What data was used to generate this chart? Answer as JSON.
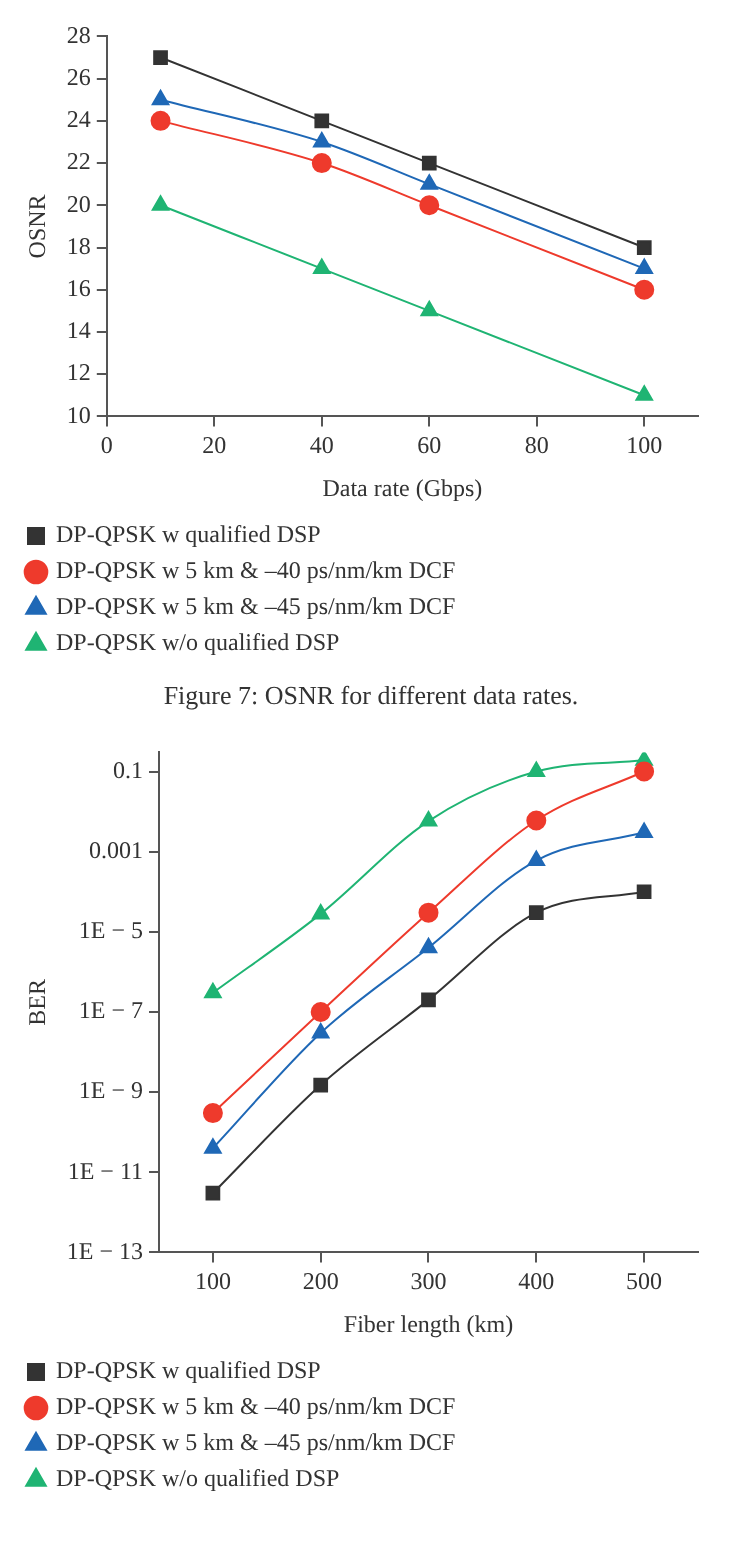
{
  "chart_data": [
    {
      "type": "line",
      "xlabel": "Data rate (Gbps)",
      "ylabel": "OSNR",
      "annotations": [
        "Figure 7: OSNR for different data rates."
      ],
      "x": [
        10,
        40,
        60,
        100
      ],
      "xlim": [
        0,
        110
      ],
      "xticks": [
        0,
        20,
        40,
        60,
        80,
        100
      ],
      "ylim": [
        10,
        28
      ],
      "yticks": [
        10,
        12,
        14,
        16,
        18,
        20,
        22,
        24,
        26,
        28
      ],
      "grid": false,
      "legend": "bottom",
      "series": [
        {
          "name": "DP-QPSK w qualified DSP",
          "color": "#333333",
          "marker": "square",
          "values": [
            27,
            24,
            22,
            18
          ]
        },
        {
          "name": "DP-QPSK w 5 km & –40 ps/nm/km DCF",
          "color": "#ee3a2c",
          "marker": "circle",
          "values": [
            24,
            22,
            20,
            16
          ]
        },
        {
          "name": "DP-QPSK w 5 km & –45 ps/nm/km DCF",
          "color": "#1f68b6",
          "marker": "triangle",
          "values": [
            25,
            23,
            21,
            17
          ]
        },
        {
          "name": "DP-QPSK w/o qualified DSP",
          "color": "#1fb473",
          "marker": "triangle",
          "values": [
            20,
            17,
            15,
            11
          ]
        }
      ]
    },
    {
      "type": "line",
      "xlabel": "Fiber length (km)",
      "ylabel": "BER",
      "log": "y",
      "x": [
        100,
        200,
        300,
        400,
        500
      ],
      "xlim": [
        50,
        550
      ],
      "xticks": [
        100,
        200,
        300,
        400,
        500
      ],
      "ylim": [
        1e-13,
        0.3
      ],
      "yticks": [
        {
          "value": 1e-13,
          "label": "1E − 13"
        },
        {
          "value": 1e-11,
          "label": "1E − 11"
        },
        {
          "value": 1e-09,
          "label": "1E − 9"
        },
        {
          "value": 1e-07,
          "label": "1E − 7"
        },
        {
          "value": 1e-05,
          "label": "1E − 5"
        },
        {
          "value": 0.001,
          "label": "0.001"
        },
        {
          "value": 0.1,
          "label": "0.1"
        }
      ],
      "grid": false,
      "legend": "bottom",
      "series": [
        {
          "name": "DP-QPSK w qualified DSP",
          "color": "#333333",
          "marker": "square",
          "values": [
            3e-12,
            1.5e-09,
            2e-07,
            3e-05,
            0.0001
          ]
        },
        {
          "name": "DP-QPSK w 5 km & –40 ps/nm/km DCF",
          "color": "#ee3a2c",
          "marker": "circle",
          "values": [
            3e-10,
            1e-07,
            3e-05,
            0.006,
            0.1
          ]
        },
        {
          "name": "DP-QPSK w 5 km & –45 ps/nm/km DCF",
          "color": "#1f68b6",
          "marker": "triangle",
          "values": [
            4e-11,
            3e-08,
            4e-06,
            0.0006,
            0.003
          ]
        },
        {
          "name": "DP-QPSK w/o qualified DSP",
          "color": "#1fb473",
          "marker": "triangle",
          "values": [
            3e-07,
            2.8e-05,
            0.0058,
            0.1,
            0.19
          ]
        }
      ]
    }
  ]
}
